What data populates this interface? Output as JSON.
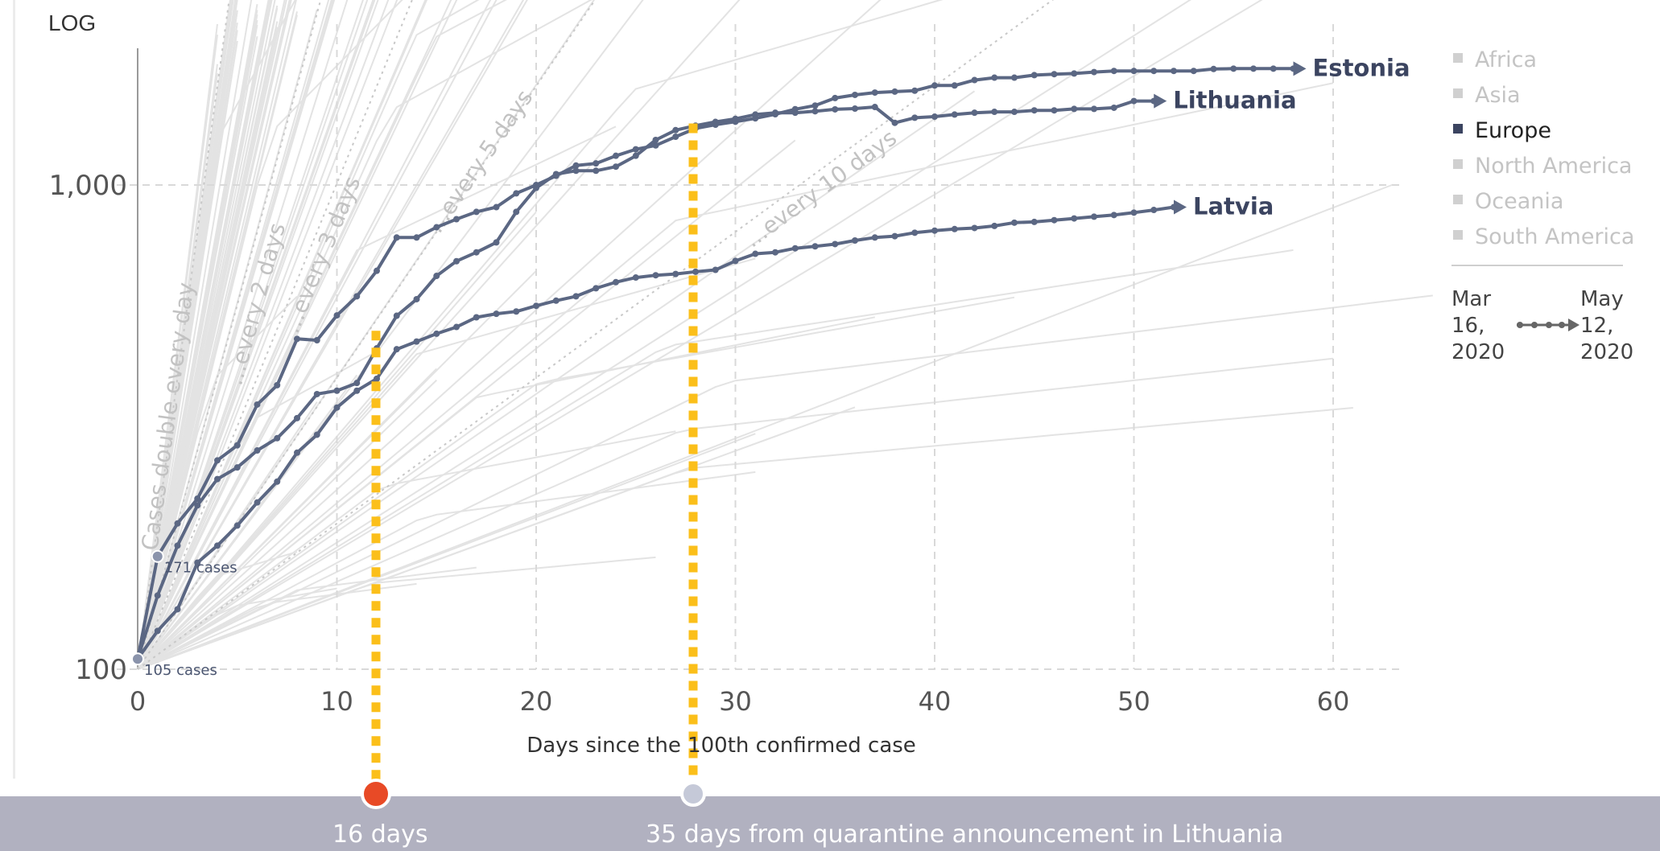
{
  "scale_label": "LOG",
  "chart_data": {
    "type": "line",
    "yscale": "log",
    "xlabel": "Days since the 100th confirmed case",
    "ylabel": "",
    "xlim": [
      0,
      64
    ],
    "ylim": [
      100,
      3000
    ],
    "x_ticks": [
      "0",
      "10",
      "20",
      "30",
      "40",
      "50",
      "60"
    ],
    "y_ticks": [
      "100",
      "1,000"
    ],
    "grid": true,
    "legend": {
      "position": "right",
      "items": [
        {
          "label": "Africa",
          "highlighted": false
        },
        {
          "label": "Asia",
          "highlighted": false
        },
        {
          "label": "Europe",
          "highlighted": true
        },
        {
          "label": "North America",
          "highlighted": false
        },
        {
          "label": "Oceania",
          "highlighted": false
        },
        {
          "label": "South America",
          "highlighted": false
        }
      ],
      "time_start": [
        "Mar",
        "16,",
        "2020"
      ],
      "time_end": [
        "May",
        "12,",
        "2020"
      ]
    },
    "doubling_guides": [
      {
        "label": "Cases double every day",
        "days": 1
      },
      {
        "label": "...every 2 days",
        "days": 2
      },
      {
        "label": "...every 3 days",
        "days": 3
      },
      {
        "label": "...every 5 days",
        "days": 5
      },
      {
        "label": "...every 10 days",
        "days": 10
      }
    ],
    "annotations": [
      {
        "label": "171 cases",
        "x": 1,
        "y": 171
      },
      {
        "label": "105 cases",
        "x": 0,
        "y": 105
      }
    ],
    "series": [
      {
        "name": "Estonia",
        "color": "#5b6783",
        "x": [
          0,
          1,
          2,
          3,
          4,
          5,
          6,
          7,
          8,
          9,
          10,
          11,
          12,
          13,
          14,
          15,
          16,
          17,
          18,
          19,
          20,
          21,
          22,
          23,
          24,
          25,
          26,
          27,
          28,
          29,
          30,
          31,
          32,
          33,
          34,
          35,
          36,
          37,
          38,
          39,
          40,
          41,
          42,
          43,
          44,
          45,
          46,
          47,
          48,
          49,
          50,
          51,
          52,
          53,
          54,
          55,
          56,
          57,
          58
        ],
        "y": [
          105,
          171,
          200,
          225,
          270,
          290,
          352,
          386,
          481,
          478,
          538,
          589,
          665,
          779,
          779,
          818,
          850,
          880,
          900,
          961,
          1000,
          1045,
          1097,
          1108,
          1149,
          1185,
          1207,
          1258,
          1309,
          1332,
          1351,
          1373,
          1400,
          1434,
          1459,
          1512,
          1535,
          1552,
          1559,
          1566,
          1605,
          1605,
          1647,
          1666,
          1666,
          1686,
          1694,
          1699,
          1711,
          1720,
          1720,
          1720,
          1720,
          1720,
          1736,
          1739,
          1739,
          1739,
          1739
        ]
      },
      {
        "name": "Lithuania",
        "color": "#5b6783",
        "x": [
          0,
          1,
          2,
          3,
          4,
          5,
          6,
          7,
          8,
          9,
          10,
          11,
          12,
          13,
          14,
          15,
          16,
          17,
          18,
          19,
          20,
          21,
          22,
          23,
          24,
          25,
          26,
          27,
          28,
          29,
          30,
          31,
          32,
          33,
          34,
          35,
          36,
          37,
          38,
          39,
          40,
          41,
          42,
          43,
          44,
          45,
          46,
          47,
          48,
          49,
          50,
          51
        ],
        "y": [
          105,
          142,
          180,
          218,
          247,
          261,
          283,
          300,
          330,
          370,
          376,
          390,
          460,
          537,
          581,
          649,
          696,
          726,
          761,
          880,
          986,
          1053,
          1070,
          1070,
          1091,
          1149,
          1239,
          1298,
          1326,
          1350,
          1370,
          1398,
          1410,
          1410,
          1420,
          1433,
          1438,
          1449,
          1344,
          1377,
          1384,
          1398,
          1410,
          1416,
          1416,
          1426,
          1426,
          1436,
          1436,
          1444,
          1491,
          1491
        ]
      },
      {
        "name": "Latvia",
        "color": "#5b6783",
        "x": [
          0,
          1,
          2,
          3,
          4,
          5,
          6,
          7,
          8,
          9,
          10,
          11,
          12,
          13,
          14,
          15,
          16,
          17,
          18,
          19,
          20,
          21,
          22,
          23,
          24,
          25,
          26,
          27,
          28,
          29,
          30,
          31,
          32,
          33,
          34,
          35,
          36,
          37,
          38,
          39,
          40,
          41,
          42,
          43,
          44,
          45,
          46,
          47,
          48,
          49,
          50,
          51,
          52
        ],
        "y": [
          105,
          120,
          133,
          166,
          180,
          198,
          221,
          244,
          280,
          305,
          347,
          376,
          398,
          458,
          475,
          493,
          509,
          533,
          542,
          548,
          563,
          577,
          589,
          612,
          630,
          644,
          651,
          655,
          662,
          668,
          697,
          721,
          726,
          740,
          747,
          755,
          768,
          779,
          784,
          797,
          805,
          811,
          815,
          823,
          836,
          839,
          846,
          853,
          860,
          867,
          877,
          888,
          900
        ]
      }
    ]
  },
  "bottom_bar": {
    "marker_1": {
      "label": "16 days",
      "color": "#e84a26"
    },
    "marker_2": {
      "label": "35 days   from quarantine announcement in Lithuania",
      "color": "#c5c9d8"
    }
  },
  "colors": {
    "highlight": "#5b6783",
    "background_lines": "#e3e3e3",
    "guide": "#c8c8c8",
    "dashed_marker": "#fbbf1a",
    "bottom_bar": "#b1b1c0"
  }
}
